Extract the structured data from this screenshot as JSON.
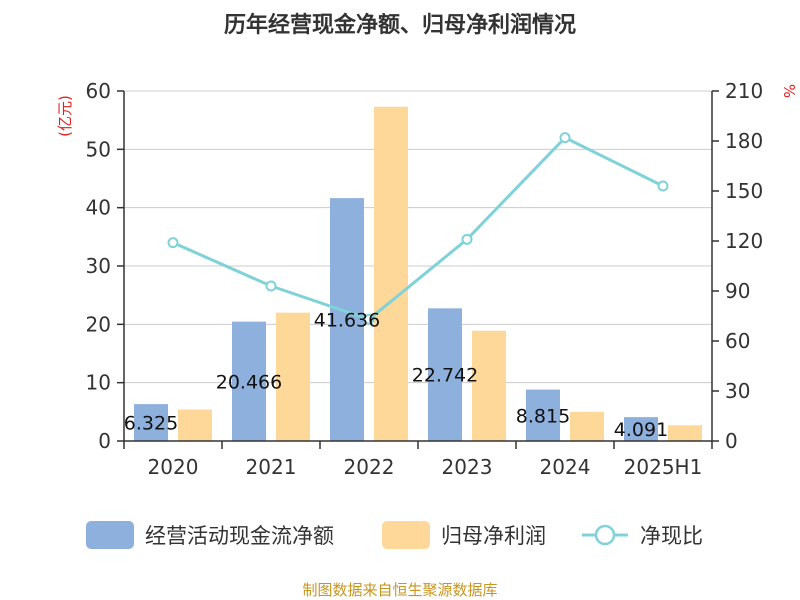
{
  "title": "历年经营现金净额、归母净利润情况",
  "source": "制图数据来自恒生聚源数据库",
  "colors": {
    "cash": "#8eb0dd",
    "profit": "#fdd898",
    "ratio": "#7fd3d8",
    "unit": "#e02020",
    "source": "#c8961e"
  },
  "chart_data": {
    "type": "bar",
    "title": "历年经营现金净额、归母净利润情况",
    "categories": [
      "2020",
      "2021",
      "2022",
      "2023",
      "2024",
      "2025H1"
    ],
    "y_left": {
      "unit_label": "(亿元)",
      "min": 0,
      "max": 60,
      "ticks": [
        "0",
        "10",
        "20",
        "30",
        "40",
        "50",
        "60"
      ]
    },
    "y_right": {
      "unit_label": "%",
      "min": 0,
      "max": 210,
      "ticks": [
        "0",
        "30",
        "60",
        "90",
        "120",
        "150",
        "180",
        "210"
      ]
    },
    "grid": true,
    "legend_position": "bottom",
    "series": [
      {
        "name": "经营活动现金流净额",
        "type": "bar",
        "axis": "left",
        "color": "#8eb0dd",
        "values": [
          6.325,
          20.466,
          41.636,
          22.742,
          8.815,
          4.091
        ],
        "labels": [
          "6.325",
          "20.466",
          "41.636",
          "22.742",
          "8.815",
          "4.091"
        ]
      },
      {
        "name": "归母净利润",
        "type": "bar",
        "axis": "left",
        "color": "#fdd898",
        "values": [
          5.4,
          22.0,
          57.3,
          18.9,
          5.0,
          2.7
        ]
      },
      {
        "name": "净现比",
        "type": "line",
        "axis": "right",
        "color": "#7fd3d8",
        "values": [
          119,
          93,
          73,
          121,
          182,
          153
        ]
      }
    ]
  }
}
